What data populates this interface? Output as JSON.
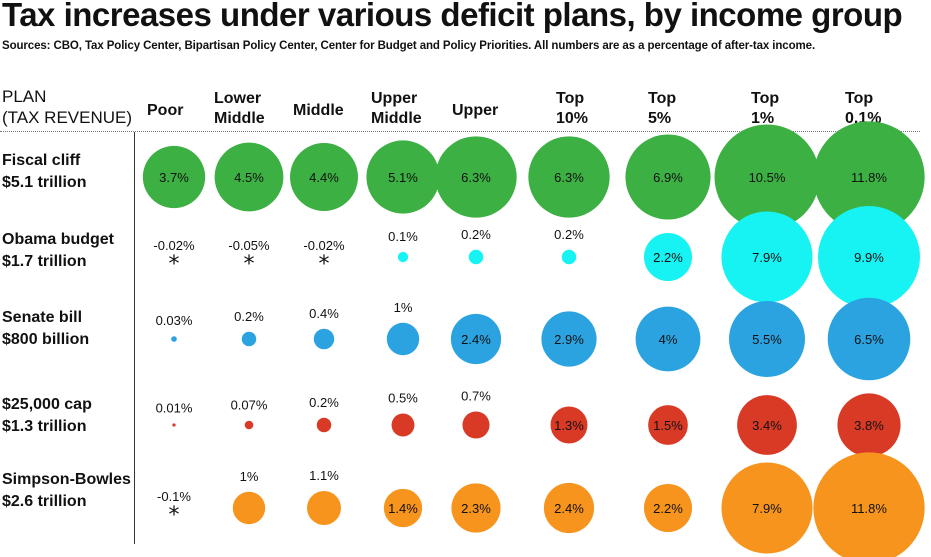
{
  "title": "Tax increases under various deficit plans, by income group",
  "subtitle": "Sources: CBO, Tax Policy Center, Bipartisan Policy Center, Center for Budget and Policy Priorities. All numbers are as a percentage of after-tax income.",
  "header": {
    "plan_line1": "PLAN",
    "plan_line2": "(TAX REVENUE)"
  },
  "columns": [
    {
      "line1": "Poor",
      "line2": ""
    },
    {
      "line1": "Lower",
      "line2": "Middle"
    },
    {
      "line1": "Middle",
      "line2": ""
    },
    {
      "line1": "Upper",
      "line2": "Middle"
    },
    {
      "line1": "Upper",
      "line2": ""
    },
    {
      "line1": "Top",
      "line2": "10%"
    },
    {
      "line1": "Top",
      "line2": "5%"
    },
    {
      "line1": "Top",
      "line2": "1%"
    },
    {
      "line1": "Top",
      "line2": "0.1%"
    }
  ],
  "rows": [
    {
      "plan": "Fiscal cliff",
      "revenue": "$5.1 trillion"
    },
    {
      "plan": "Obama budget",
      "revenue": "$1.7 trillion"
    },
    {
      "plan": "Senate bill",
      "revenue": "$800 billion"
    },
    {
      "plan": "$25,000 cap",
      "revenue": "$1.3 trillion"
    },
    {
      "plan": "Simpson-Bowles",
      "revenue": "$2.6 trillion"
    }
  ],
  "chart_data": {
    "type": "bubble",
    "unit": "% of after-tax income",
    "negative_marker": "*",
    "categories": [
      "Poor",
      "Lower Middle",
      "Middle",
      "Upper Middle",
      "Upper",
      "Top 10%",
      "Top 5%",
      "Top 1%",
      "Top 0.1%"
    ],
    "series": [
      {
        "name": "Fiscal cliff",
        "color": "#3cb043",
        "values": [
          3.7,
          4.5,
          4.4,
          5.1,
          6.3,
          6.3,
          6.9,
          10.5,
          11.8
        ],
        "labels": [
          "3.7%",
          "4.5%",
          "4.4%",
          "5.1%",
          "6.3%",
          "6.3%",
          "6.9%",
          "10.5%",
          "11.8%"
        ]
      },
      {
        "name": "Obama budget",
        "color": "#17f3f3",
        "values": [
          -0.02,
          -0.05,
          -0.02,
          0.1,
          0.2,
          0.2,
          2.2,
          7.9,
          9.9
        ],
        "labels": [
          "-0.02%",
          "-0.05%",
          "-0.02%",
          "0.1%",
          "0.2%",
          "0.2%",
          "2.2%",
          "7.9%",
          "9.9%"
        ]
      },
      {
        "name": "Senate bill",
        "color": "#2ba3e0",
        "values": [
          0.03,
          0.2,
          0.4,
          1,
          2.4,
          2.9,
          4,
          5.5,
          6.5
        ],
        "labels": [
          "0.03%",
          "0.2%",
          "0.4%",
          "1%",
          "2.4%",
          "2.9%",
          "4%",
          "5.5%",
          "6.5%"
        ]
      },
      {
        "name": "$25,000 cap",
        "color": "#d93a26",
        "values": [
          0.01,
          0.07,
          0.2,
          0.5,
          0.7,
          1.3,
          1.5,
          3.4,
          3.8
        ],
        "labels": [
          "0.01%",
          "0.07%",
          "0.2%",
          "0.5%",
          "0.7%",
          "1.3%",
          "1.5%",
          "3.4%",
          "3.8%"
        ]
      },
      {
        "name": "Simpson-Bowles",
        "color": "#f7941d",
        "values": [
          -0.1,
          1,
          1.1,
          1.4,
          2.3,
          2.4,
          2.2,
          7.9,
          11.8
        ],
        "labels": [
          "-0.1%",
          "1%",
          "1.1%",
          "1.4%",
          "2.3%",
          "2.4%",
          "2.2%",
          "7.9%",
          "11.8%"
        ]
      }
    ]
  }
}
